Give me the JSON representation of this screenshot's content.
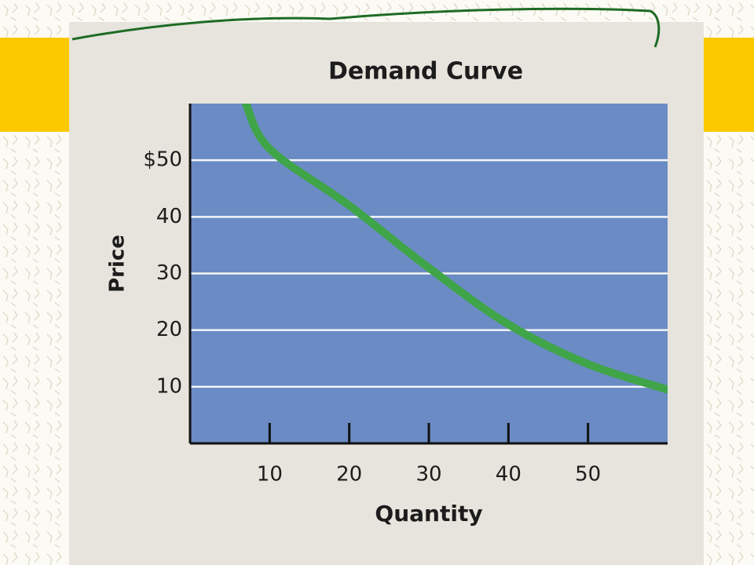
{
  "chart_data": {
    "type": "line",
    "title": "Demand Curve",
    "x_label": "Quantity",
    "y_label": "Price",
    "x": [
      7,
      10,
      20,
      30,
      40,
      50,
      60
    ],
    "values": [
      60,
      52,
      42,
      31,
      21,
      14,
      9.5
    ],
    "color": "#3fa548",
    "xlim": [
      0,
      60
    ],
    "xticks": [
      10,
      20,
      30,
      40,
      50
    ],
    "ylim": [
      0,
      60
    ],
    "yticks": [
      10,
      20,
      30,
      40,
      {
        "value": 50,
        "label": "$50"
      }
    ],
    "grid": true
  }
}
